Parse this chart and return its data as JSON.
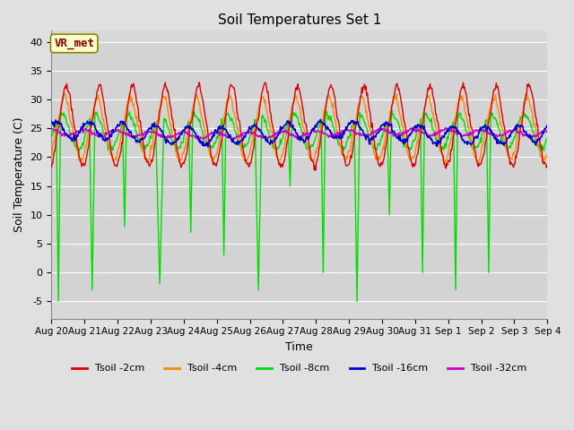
{
  "title": "Soil Temperatures Set 1",
  "xlabel": "Time",
  "ylabel": "Soil Temperature (C)",
  "ylim": [
    -8,
    42
  ],
  "annotation": "VR_met",
  "xtick_labels": [
    "Aug 20",
    "Aug 21",
    "Aug 22",
    "Aug 23",
    "Aug 24",
    "Aug 25",
    "Aug 26",
    "Aug 27",
    "Aug 28",
    "Aug 29",
    "Aug 30",
    "Aug 31",
    "Sep 1",
    "Sep 2",
    "Sep 3",
    "Sep 4"
  ],
  "ytick_labels": [
    -5,
    0,
    5,
    10,
    15,
    20,
    25,
    30,
    35,
    40
  ],
  "colors": {
    "t2cm": "#dd0000",
    "t4cm": "#ff8800",
    "t8cm": "#00dd00",
    "t16cm": "#0000cc",
    "t32cm": "#cc00cc"
  },
  "bg_color": "#e0e0e0",
  "plot_bg_color": "#d8d8d8",
  "grid_color": "#ffffff",
  "grid_color2": "#c8c8c8"
}
